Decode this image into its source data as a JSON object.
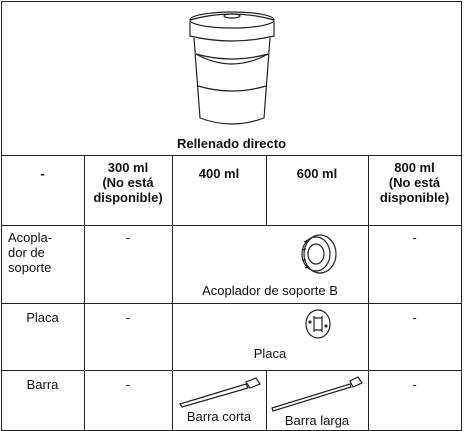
{
  "table": {
    "title": "Rellenado directo",
    "header": [
      "-",
      "300 ml\n(No está\ndisponible)",
      "400 ml",
      "600 ml",
      "800 ml\n(No está\ndisponible)"
    ],
    "rows": [
      [
        "Acopla-\ndor de\nsoporte",
        "-",
        "Acoplador de soporte B",
        "-"
      ],
      [
        "Placa",
        "-",
        "Placa",
        "-"
      ],
      [
        "Barra",
        "-",
        "Barra corta",
        "Barra larga",
        "-"
      ]
    ]
  }
}
